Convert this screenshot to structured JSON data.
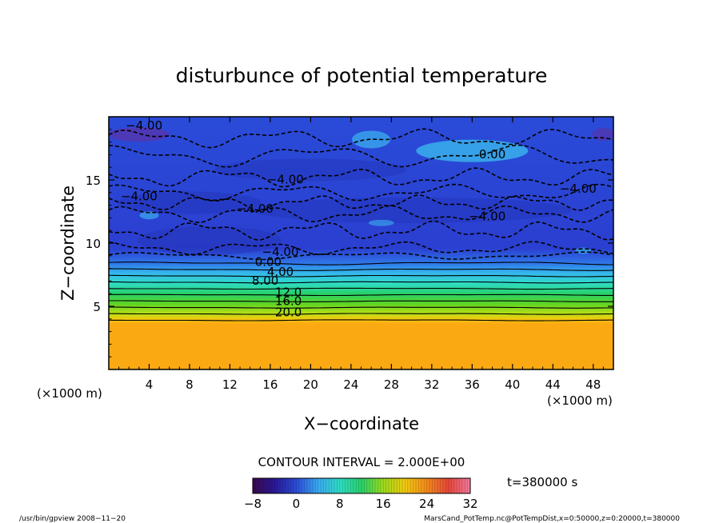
{
  "chart_data": {
    "type": "heatmap",
    "title": "disturbunce of potential temperature",
    "xlabel": "X−coordinate",
    "ylabel": "Z−coordinate",
    "x_unit_left": "(×1000 m)",
    "x_unit_right": "(×1000 m)",
    "xlim": [
      0,
      50
    ],
    "ylim": [
      0,
      20
    ],
    "x_ticks": [
      4,
      8,
      12,
      16,
      20,
      24,
      28,
      32,
      36,
      40,
      44,
      48
    ],
    "y_ticks": [
      5,
      10,
      15
    ],
    "x_tick_labels": [
      "4",
      "8",
      "12",
      "16",
      "20",
      "24",
      "28",
      "32",
      "36",
      "40",
      "44",
      "48"
    ],
    "y_tick_labels": [
      "5",
      "10",
      "15"
    ],
    "contour_interval_text": "CONTOUR INTERVAL = 2.000E+00",
    "colorbar": {
      "min": -8,
      "max": 32,
      "ticks": [
        -8,
        0,
        8,
        16,
        24,
        32
      ],
      "tick_labels": [
        "−8",
        "0",
        "8",
        "16",
        "24",
        "32"
      ]
    },
    "time_label": "t=380000 s",
    "contour_labels": [
      {
        "text": "−4.00",
        "x": 3.5,
        "z": 19.0
      },
      {
        "text": "−4.00",
        "x": 17.5,
        "z": 14.7
      },
      {
        "text": "−4.00",
        "x": 3.0,
        "z": 13.4
      },
      {
        "text": "−4.00",
        "x": 14.5,
        "z": 12.4
      },
      {
        "text": "−4.00",
        "x": 46.5,
        "z": 14.0
      },
      {
        "text": "−4.00",
        "x": 37.5,
        "z": 11.8
      },
      {
        "text": "−4.00",
        "x": 17.0,
        "z": 9.0
      },
      {
        "text": "0.00",
        "x": 38.0,
        "z": 16.7
      },
      {
        "text": "0.00",
        "x": 15.8,
        "z": 8.2
      },
      {
        "text": "4.00",
        "x": 17.0,
        "z": 7.4
      },
      {
        "text": "8.00",
        "x": 15.5,
        "z": 6.7
      },
      {
        "text": "12.0",
        "x": 17.8,
        "z": 5.8
      },
      {
        "text": "16.0",
        "x": 17.8,
        "z": 5.1
      },
      {
        "text": "20.0",
        "x": 17.8,
        "z": 4.2
      }
    ]
  },
  "footer": {
    "left": "/usr/bin/gpview   2008−11−20",
    "right": "MarsCand_PotTemp.nc@PotTempDist,x=0:50000,z=0:20000,t=380000"
  }
}
